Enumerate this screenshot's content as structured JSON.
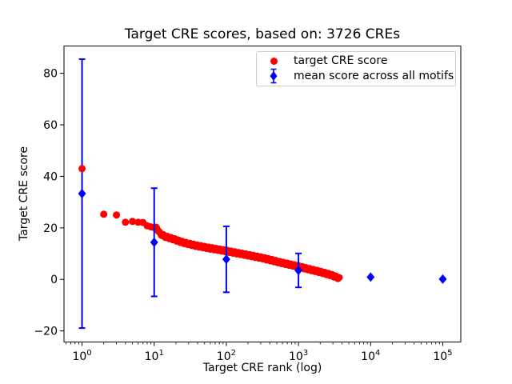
{
  "chart_data": {
    "type": "scatter",
    "title": "Target CRE scores, based on: 3726 CREs",
    "xlabel": "Target CRE rank (log)",
    "ylabel": "Target CRE score",
    "x_scale": "log",
    "x_tick_exponents": [
      0,
      1,
      2,
      3,
      4,
      5
    ],
    "x_tick_base": "10",
    "y_ticks": [
      -20,
      0,
      20,
      40,
      60,
      80
    ],
    "xlim_log10": [
      -0.25,
      5.25
    ],
    "ylim": [
      -24.3,
      90.6
    ],
    "grid": false,
    "legend_position": "upper right",
    "n_points_total": 3726,
    "series": [
      {
        "name": "target CRE score",
        "color": "#ff0000",
        "marker": "circle",
        "note": "3726 points, ranks 1-3726; values below are read-off samples [log10(rank), score]; ranks 1-10 are exact discrete dots, rest is a dense band",
        "sampled_points_log10x_y": [
          [
            0.0,
            43.0
          ],
          [
            0.301,
            25.3
          ],
          [
            0.477,
            25.0
          ],
          [
            0.602,
            22.2
          ],
          [
            0.699,
            22.5
          ],
          [
            0.778,
            22.2
          ],
          [
            0.845,
            22.1
          ],
          [
            0.903,
            20.8
          ],
          [
            0.954,
            20.4
          ],
          [
            1.0,
            20.1
          ],
          [
            1.041,
            19.8
          ],
          [
            1.079,
            17.8
          ],
          [
            1.146,
            16.7
          ],
          [
            1.26,
            15.7
          ],
          [
            1.4,
            14.3
          ],
          [
            1.58,
            13.1
          ],
          [
            1.75,
            12.2
          ],
          [
            1.9,
            11.5
          ],
          [
            2.0,
            11.0
          ],
          [
            2.15,
            10.2
          ],
          [
            2.3,
            9.4
          ],
          [
            2.5,
            8.3
          ],
          [
            2.7,
            6.9
          ],
          [
            2.85,
            5.9
          ],
          [
            3.0,
            5.0
          ],
          [
            3.15,
            3.9
          ],
          [
            3.3,
            2.9
          ],
          [
            3.45,
            1.7
          ],
          [
            3.55,
            0.6
          ],
          [
            3.5712,
            0.3
          ]
        ],
        "discrete_rank_cutoff": 10
      },
      {
        "name": "mean score across all motifs",
        "color": "#0000ff",
        "marker": "diamond",
        "x": [
          1,
          10,
          100,
          1000,
          10000,
          100000
        ],
        "mean": [
          33.3,
          14.4,
          7.8,
          3.5,
          0.9,
          0.1
        ],
        "std": [
          52.2,
          21.0,
          12.8,
          6.6,
          0,
          0
        ]
      }
    ]
  }
}
